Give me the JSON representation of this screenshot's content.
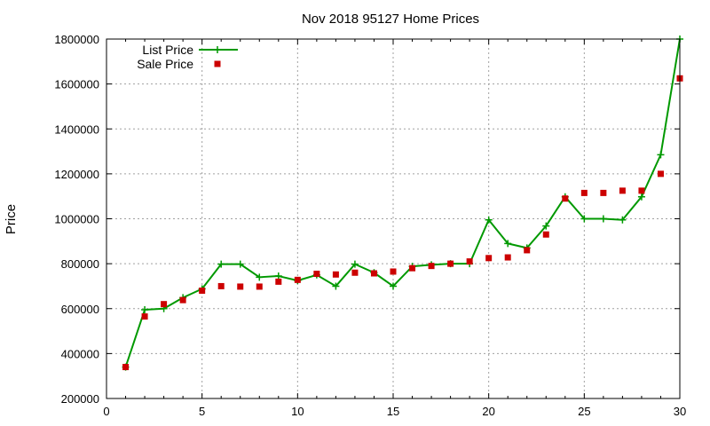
{
  "chart_data": {
    "type": "line",
    "title": "Nov 2018 95127 Home Prices",
    "xlabel": "",
    "ylabel": "Price",
    "xlim": [
      0,
      30
    ],
    "ylim": [
      200000,
      1800000
    ],
    "xticks": [
      0,
      5,
      10,
      15,
      20,
      25,
      30
    ],
    "yticks": [
      200000,
      400000,
      600000,
      800000,
      1000000,
      1200000,
      1400000,
      1600000,
      1800000
    ],
    "grid": true,
    "legend": "top-left",
    "x": [
      1,
      2,
      3,
      4,
      5,
      6,
      7,
      8,
      9,
      10,
      11,
      12,
      13,
      14,
      15,
      16,
      17,
      18,
      19,
      20,
      21,
      22,
      23,
      24,
      25,
      26,
      27,
      28,
      29,
      30
    ],
    "series": [
      {
        "name": "List Price",
        "style": "line-plus",
        "color": "#009900",
        "values": [
          340000,
          595000,
          600000,
          649000,
          688000,
          798000,
          798000,
          740000,
          745000,
          725000,
          750000,
          700000,
          798000,
          760000,
          700000,
          788000,
          795000,
          800000,
          800000,
          995000,
          890000,
          870000,
          968000,
          1098000,
          1000000,
          1000000,
          995000,
          1098000,
          1285000,
          1800000
        ]
      },
      {
        "name": "Sale Price",
        "style": "square",
        "color": "#cc0000",
        "values": [
          340000,
          565000,
          620000,
          638000,
          680000,
          700000,
          698000,
          698000,
          720000,
          728000,
          755000,
          752000,
          760000,
          757000,
          765000,
          780000,
          790000,
          800000,
          810000,
          825000,
          828000,
          860000,
          930000,
          1090000,
          1115000,
          1115000,
          1125000,
          1125000,
          1200000,
          1625000
        ]
      }
    ]
  }
}
